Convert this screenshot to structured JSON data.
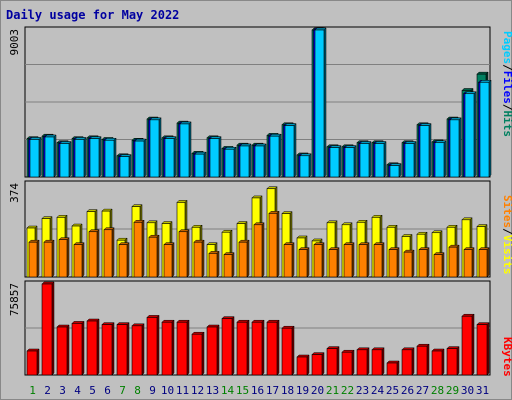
{
  "chart_data": [
    {
      "type": "bar",
      "title": "Daily usage for May 2022",
      "categories": [
        "1",
        "2",
        "3",
        "4",
        "5",
        "6",
        "7",
        "8",
        "9",
        "10",
        "11",
        "12",
        "13",
        "14",
        "15",
        "16",
        "17",
        "18",
        "19",
        "20",
        "21",
        "22",
        "23",
        "24",
        "25",
        "26",
        "27",
        "28",
        "29",
        "30",
        "31"
      ],
      "weekend_days": [
        "1",
        "7",
        "8",
        "14",
        "15",
        "21",
        "22",
        "28",
        "29"
      ],
      "ylim": [
        0,
        9003
      ],
      "ytick": "9003",
      "right_label": [
        "Pages",
        "/",
        "Files",
        "/",
        "Hits"
      ],
      "series": [
        {
          "name": "Hits",
          "color": "#008060",
          "values": [
            2350,
            2500,
            2100,
            2350,
            2400,
            2300,
            1300,
            2250,
            3550,
            2400,
            3300,
            1450,
            2400,
            1750,
            1950,
            1950,
            2550,
            3200,
            1350,
            9003,
            1850,
            1850,
            2100,
            2100,
            750,
            2100,
            3200,
            2150,
            3550,
            5300,
            6300
          ]
        },
        {
          "name": "Files",
          "color": "#0000ff",
          "values": [
            2300,
            2450,
            2050,
            2300,
            2350,
            2250,
            1250,
            2200,
            3500,
            2350,
            3250,
            1400,
            2350,
            1700,
            1900,
            1900,
            2500,
            3150,
            1300,
            9003,
            1800,
            1800,
            2050,
            2050,
            700,
            2050,
            3150,
            2100,
            3500,
            5100,
            5800
          ]
        },
        {
          "name": "Pages",
          "color": "#00ccff",
          "values": [
            2300,
            2450,
            2050,
            2300,
            2350,
            2250,
            1250,
            2200,
            3500,
            2350,
            3250,
            1400,
            2350,
            1700,
            1900,
            1900,
            2500,
            3150,
            1300,
            9003,
            1800,
            1800,
            2050,
            2050,
            700,
            2050,
            3150,
            2100,
            3500,
            5100,
            5800
          ]
        }
      ]
    },
    {
      "type": "bar",
      "ylim": [
        0,
        374
      ],
      "ytick": "374",
      "right_label": [
        "Sites",
        "/",
        "Visits"
      ],
      "series": [
        {
          "name": "Visits",
          "color": "#ffff00",
          "values": [
            197,
            235,
            240,
            205,
            263,
            265,
            148,
            283,
            218,
            215,
            300,
            200,
            130,
            180,
            215,
            318,
            355,
            255,
            157,
            145,
            218,
            210,
            220,
            240,
            200,
            163,
            172,
            178,
            200,
            230,
            203
          ]
        },
        {
          "name": "Sites",
          "color": "#ff8000",
          "values": [
            140,
            140,
            150,
            130,
            182,
            190,
            130,
            220,
            160,
            130,
            182,
            140,
            95,
            90,
            140,
            210,
            256,
            130,
            110,
            130,
            110,
            130,
            130,
            130,
            110,
            100,
            110,
            90,
            120,
            110,
            110
          ]
        }
      ]
    },
    {
      "type": "bar",
      "ylim": [
        0,
        75857
      ],
      "ytick": "75857",
      "right_label": [
        "KBytes"
      ],
      "series": [
        {
          "name": "KBytes",
          "color": "#ff0000",
          "values": [
            20000,
            75857,
            40000,
            43000,
            45000,
            42000,
            42000,
            41000,
            48000,
            44000,
            44000,
            34000,
            40000,
            47000,
            44000,
            44000,
            44000,
            39000,
            15000,
            17000,
            22000,
            19000,
            21000,
            21000,
            10000,
            21000,
            24000,
            20000,
            22000,
            49000,
            42000
          ]
        }
      ]
    }
  ]
}
